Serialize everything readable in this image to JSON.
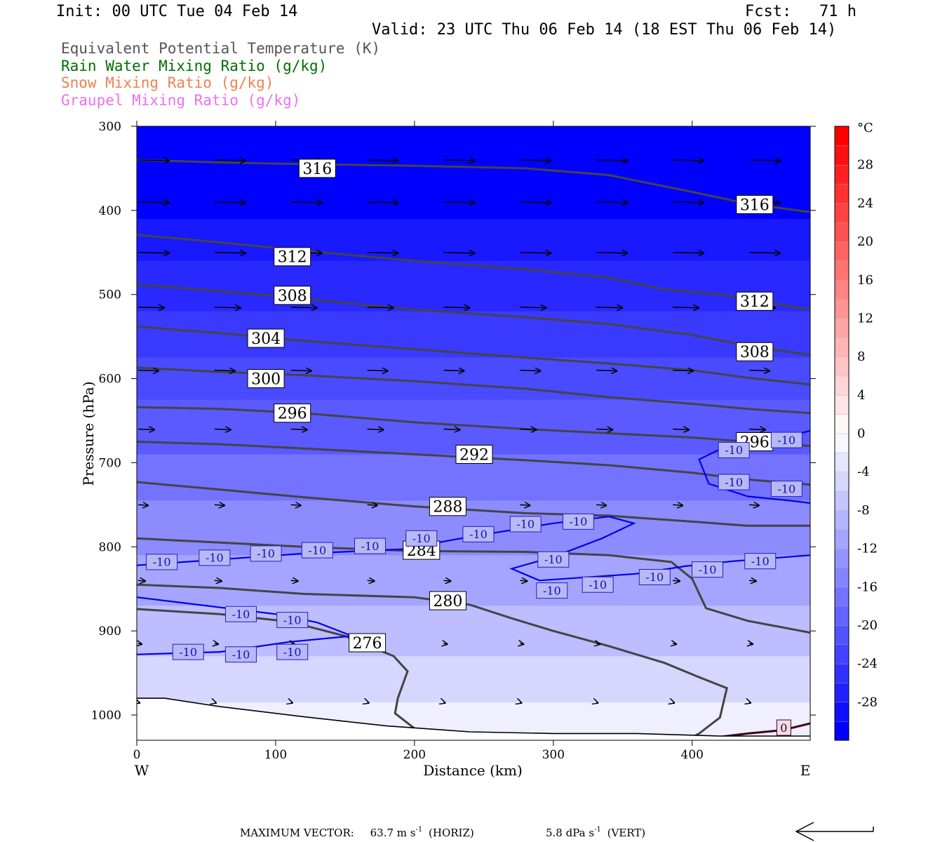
{
  "header": {
    "init": "Init: 00 UTC Tue 04 Feb 14",
    "fcst": "Fcst:   71 h",
    "valid": "Valid: 23 UTC Thu 06 Feb 14 (18 EST Thu 06 Feb 14)"
  },
  "legend": [
    {
      "label": "Equivalent Potential Temperature (K)",
      "color": "#555555"
    },
    {
      "label": "Rain Water Mixing Ratio (g/kg)",
      "color": "#007000"
    },
    {
      "label": "Snow Mixing Ratio (g/kg)",
      "color": "#f08050"
    },
    {
      "label": "Graupel Mixing Ratio (g/kg)",
      "color": "#ee70ee"
    }
  ],
  "footer": {
    "prefix": "MAXIMUM VECTOR:",
    "horiz": "63.7 m s",
    "horiz_exp": "-1",
    "horiz_suffix": "(HORIZ)",
    "vert": "5.8 dPa s",
    "vert_exp": "-1",
    "vert_suffix": "(VERT)"
  },
  "colors": {
    "fill_cold": "#0000ff",
    "fill_warm": "#ffffff",
    "theta_line": "#444444",
    "temp_line": "#0000ee",
    "warm_line": "#400020"
  },
  "chart_data": {
    "type": "heatmap",
    "title": "",
    "xlabel": "Distance (km)",
    "ylabel": "Pressure (hPa)",
    "xlim": [
      0,
      485
    ],
    "ylim": [
      1030,
      300
    ],
    "x_ticks": [
      0,
      100,
      200,
      300,
      400
    ],
    "y_ticks": [
      300,
      400,
      500,
      600,
      700,
      800,
      900,
      1000
    ],
    "x_end_labels": {
      "left": "W",
      "right": "E"
    },
    "colorbar": {
      "unit": "°C",
      "levels": [
        -32,
        -30,
        -28,
        -26,
        -24,
        -22,
        -20,
        -18,
        -16,
        -14,
        -12,
        -10,
        -8,
        -6,
        -4,
        -2,
        0,
        2,
        4,
        6,
        8,
        10,
        12,
        14,
        16,
        18,
        20,
        22,
        24,
        26,
        28,
        30,
        32
      ],
      "tick_labels": [
        "28",
        "24",
        "20",
        "16",
        "12",
        "8",
        "4",
        "0",
        "-4",
        "-8",
        "-12",
        "-16",
        "-20",
        "-24",
        "-28"
      ],
      "tick_values": [
        28,
        24,
        20,
        16,
        12,
        8,
        4,
        0,
        -4,
        -8,
        -12,
        -16,
        -20,
        -24,
        -28
      ]
    },
    "theta_e_contours": [
      {
        "label": "316",
        "points": [
          [
            0,
            340
          ],
          [
            60,
            343
          ],
          [
            120,
            345
          ],
          [
            200,
            347
          ],
          [
            280,
            350
          ],
          [
            340,
            358
          ],
          [
            400,
            378
          ],
          [
            440,
            392
          ],
          [
            485,
            402
          ]
        ],
        "labels_at": [
          [
            130,
            350
          ],
          [
            445,
            393
          ]
        ]
      },
      {
        "label": "312",
        "points": [
          [
            0,
            429
          ],
          [
            60,
            438
          ],
          [
            120,
            448
          ],
          [
            200,
            460
          ],
          [
            280,
            470
          ],
          [
            340,
            480
          ],
          [
            380,
            494
          ],
          [
            420,
            500
          ],
          [
            485,
            518
          ]
        ],
        "labels_at": [
          [
            112,
            455
          ],
          [
            445,
            508
          ]
        ]
      },
      {
        "label": "308",
        "points": [
          [
            0,
            488
          ],
          [
            60,
            496
          ],
          [
            120,
            505
          ],
          [
            200,
            518
          ],
          [
            280,
            527
          ],
          [
            340,
            535
          ],
          [
            400,
            548
          ],
          [
            440,
            561
          ],
          [
            485,
            572
          ]
        ],
        "labels_at": [
          [
            112,
            501
          ],
          [
            445,
            568
          ]
        ]
      },
      {
        "label": "304",
        "points": [
          [
            0,
            538
          ],
          [
            60,
            546
          ],
          [
            120,
            555
          ],
          [
            200,
            565
          ],
          [
            280,
            575
          ],
          [
            340,
            582
          ],
          [
            400,
            590
          ],
          [
            440,
            599
          ],
          [
            485,
            607
          ]
        ],
        "labels_at": [
          [
            93,
            552
          ]
        ]
      },
      {
        "label": "300",
        "points": [
          [
            0,
            587
          ],
          [
            60,
            592
          ],
          [
            120,
            596
          ],
          [
            200,
            603
          ],
          [
            280,
            612
          ],
          [
            340,
            622
          ],
          [
            400,
            630
          ],
          [
            440,
            636
          ],
          [
            485,
            641
          ]
        ],
        "labels_at": [
          [
            93,
            600
          ]
        ]
      },
      {
        "label": "296",
        "points": [
          [
            0,
            634
          ],
          [
            60,
            636
          ],
          [
            120,
            641
          ],
          [
            200,
            652
          ],
          [
            280,
            660
          ],
          [
            340,
            665
          ],
          [
            400,
            670
          ],
          [
            440,
            675
          ],
          [
            485,
            680
          ]
        ],
        "labels_at": [
          [
            112,
            641
          ],
          [
            445,
            675
          ]
        ]
      },
      {
        "label": "292",
        "points": [
          [
            0,
            675
          ],
          [
            60,
            678
          ],
          [
            120,
            683
          ],
          [
            200,
            690
          ],
          [
            280,
            697
          ],
          [
            340,
            703
          ],
          [
            400,
            712
          ],
          [
            440,
            720
          ],
          [
            485,
            726
          ]
        ],
        "labels_at": [
          [
            243,
            690
          ]
        ]
      },
      {
        "label": "288",
        "points": [
          [
            0,
            723
          ],
          [
            60,
            732
          ],
          [
            120,
            741
          ],
          [
            200,
            752
          ],
          [
            280,
            760
          ],
          [
            340,
            763
          ],
          [
            400,
            770
          ],
          [
            440,
            775
          ],
          [
            485,
            775
          ]
        ],
        "labels_at": [
          [
            224,
            752
          ]
        ]
      },
      {
        "label": "284",
        "points": [
          [
            0,
            790
          ],
          [
            60,
            795
          ],
          [
            120,
            800
          ],
          [
            200,
            805
          ],
          [
            280,
            806
          ],
          [
            340,
            810
          ],
          [
            385,
            818
          ],
          [
            400,
            838
          ],
          [
            410,
            873
          ],
          [
            440,
            888
          ],
          [
            485,
            902
          ]
        ],
        "labels_at": [
          [
            205,
            804
          ]
        ]
      },
      {
        "label": "280",
        "points": [
          [
            0,
            845
          ],
          [
            60,
            849
          ],
          [
            120,
            856
          ],
          [
            200,
            860
          ],
          [
            240,
            869
          ],
          [
            270,
            885
          ],
          [
            300,
            900
          ],
          [
            340,
            918
          ],
          [
            380,
            938
          ],
          [
            405,
            955
          ],
          [
            425,
            968
          ],
          [
            420,
            1003
          ],
          [
            405,
            1022
          ],
          [
            398,
            1028
          ]
        ],
        "labels_at": [
          [
            224,
            864
          ]
        ]
      },
      {
        "label": "276",
        "points": [
          [
            0,
            874
          ],
          [
            60,
            880
          ],
          [
            110,
            889
          ],
          [
            150,
            906
          ],
          [
            185,
            930
          ],
          [
            195,
            948
          ],
          [
            188,
            980
          ],
          [
            186,
            998
          ],
          [
            200,
            1016
          ],
          [
            218,
            1025
          ]
        ],
        "labels_at": [
          [
            166,
            914
          ]
        ]
      }
    ],
    "temperature_contours": [
      {
        "value": "-10",
        "points": [
          [
            0,
            822
          ],
          [
            60,
            815
          ],
          [
            120,
            808
          ],
          [
            190,
            803
          ],
          [
            240,
            788
          ],
          [
            300,
            772
          ],
          [
            340,
            764
          ],
          [
            358,
            772
          ],
          [
            335,
            790
          ],
          [
            300,
            812
          ],
          [
            270,
            826
          ],
          [
            290,
            840
          ],
          [
            360,
            832
          ],
          [
            395,
            823
          ],
          [
            430,
            817
          ],
          [
            485,
            810
          ]
        ],
        "labels_at": [
          [
            18,
            818
          ],
          [
            56,
            813
          ],
          [
            93,
            808
          ],
          [
            130,
            804
          ],
          [
            168,
            799
          ],
          [
            205,
            790
          ],
          [
            246,
            785
          ],
          [
            280,
            773
          ],
          [
            318,
            770
          ],
          [
            300,
            815
          ],
          [
            299,
            852
          ],
          [
            332,
            845
          ],
          [
            373,
            836
          ],
          [
            411,
            827
          ],
          [
            449,
            817
          ]
        ]
      },
      {
        "value": "-10",
        "points": [
          [
            485,
            662
          ],
          [
            460,
            672
          ],
          [
            425,
            680
          ],
          [
            405,
            696
          ],
          [
            412,
            725
          ],
          [
            440,
            740
          ],
          [
            470,
            745
          ],
          [
            485,
            748
          ]
        ],
        "labels_at": [
          [
            468,
            673
          ],
          [
            430,
            685
          ],
          [
            430,
            723
          ],
          [
            468,
            731
          ]
        ]
      },
      {
        "value": "-10",
        "points": [
          [
            0,
            860
          ],
          [
            60,
            872
          ],
          [
            100,
            880
          ],
          [
            130,
            890
          ],
          [
            155,
            906
          ],
          [
            110,
            913
          ],
          [
            60,
            925
          ],
          [
            0,
            928
          ]
        ],
        "labels_at": [
          [
            75,
            880
          ],
          [
            112,
            887
          ],
          [
            37,
            925
          ],
          [
            75,
            928
          ],
          [
            112,
            925
          ]
        ]
      }
    ],
    "zero_contour": {
      "value": "0",
      "points": [
        [
          410,
          1028
        ],
        [
          440,
          1022
        ],
        [
          465,
          1018
        ],
        [
          485,
          1010
        ]
      ],
      "labels_at": [
        [
          466,
          1015
        ]
      ]
    },
    "terrain": [
      [
        0,
        980
      ],
      [
        20,
        980
      ],
      [
        60,
        990
      ],
      [
        120,
        1002
      ],
      [
        180,
        1013
      ],
      [
        240,
        1020
      ],
      [
        300,
        1022
      ],
      [
        360,
        1022
      ],
      [
        420,
        1025
      ],
      [
        485,
        1025
      ]
    ],
    "shading": [
      {
        "from": 300,
        "to": 410,
        "temp": -31
      },
      {
        "from": 410,
        "to": 460,
        "temp": -28
      },
      {
        "from": 460,
        "to": 520,
        "temp": -26
      },
      {
        "from": 520,
        "to": 575,
        "temp": -24
      },
      {
        "from": 575,
        "to": 625,
        "temp": -22
      },
      {
        "from": 625,
        "to": 690,
        "temp": -20
      },
      {
        "from": 690,
        "to": 745,
        "temp": -17
      },
      {
        "from": 745,
        "to": 810,
        "temp": -14
      },
      {
        "from": 810,
        "to": 870,
        "temp": -11
      },
      {
        "from": 870,
        "to": 930,
        "temp": -8
      },
      {
        "from": 930,
        "to": 985,
        "temp": -5
      },
      {
        "from": 985,
        "to": 1030,
        "temp": -2
      }
    ],
    "wind_vectors": [
      {
        "p": 340,
        "x": [
          0,
          55,
          110,
          165,
          220,
          275,
          330,
          385,
          440
        ],
        "length": 45
      },
      {
        "p": 390,
        "x": [
          0,
          55,
          110,
          165,
          220,
          275,
          330,
          385,
          440
        ],
        "length": 45
      },
      {
        "p": 450,
        "x": [
          0,
          55,
          110,
          165,
          220,
          275,
          330,
          385,
          440
        ],
        "length": 45
      },
      {
        "p": 515,
        "x": [
          0,
          55,
          110,
          165,
          220,
          275,
          330,
          385,
          440
        ],
        "length": 38
      },
      {
        "p": 590,
        "x": [
          0,
          55,
          110,
          165,
          220,
          275,
          330,
          385,
          440
        ],
        "length": 30
      },
      {
        "p": 660,
        "x": [
          0,
          55,
          110,
          165,
          220,
          275,
          330,
          385,
          440
        ],
        "length": 24
      },
      {
        "p": 750,
        "x": [
          0,
          55,
          110,
          165,
          220,
          275,
          330,
          385,
          440
        ],
        "length": 15
      },
      {
        "p": 840,
        "x": [
          0,
          55,
          110,
          165,
          220,
          275,
          330,
          385,
          440
        ],
        "length": 11
      },
      {
        "p": 915,
        "x": [
          0,
          55,
          110,
          165,
          220,
          275,
          330,
          385,
          440
        ],
        "length": 6
      },
      {
        "p": 985,
        "x": [
          0,
          55,
          110,
          165,
          220,
          275,
          330,
          385,
          440
        ],
        "length": 3
      }
    ]
  }
}
